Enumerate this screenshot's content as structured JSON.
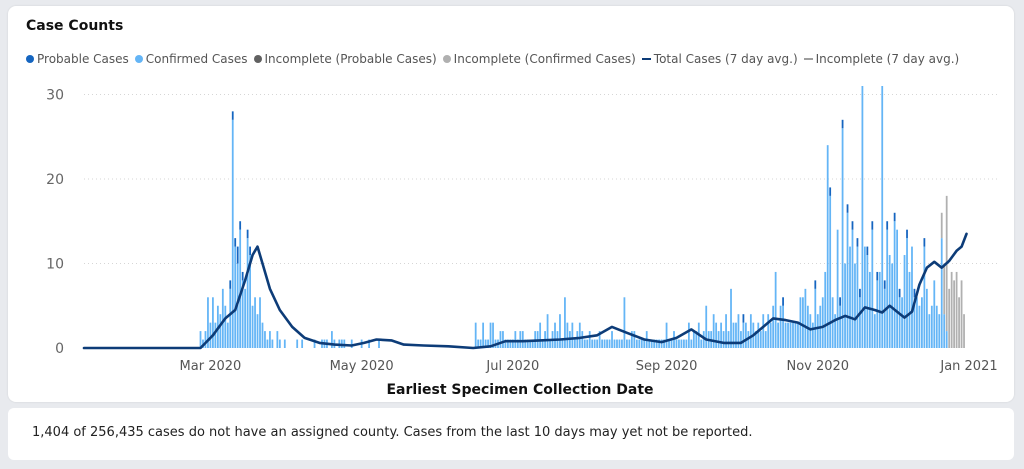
{
  "chart_data": {
    "type": "bar",
    "title": "Case Counts",
    "xlabel": "Earliest Specimen Collection Date",
    "ylabel": "",
    "ylim": [
      0,
      31
    ],
    "yticks": [
      0,
      10,
      20,
      30
    ],
    "grid": true,
    "legend_position": "top-left",
    "x_start": "2020-01-10",
    "x_end": "2020-12-31",
    "xticks": [
      {
        "date": "2020-03-01",
        "label": "Mar 2020"
      },
      {
        "date": "2020-05-01",
        "label": "May 2020"
      },
      {
        "date": "2020-07-01",
        "label": "Jul 2020"
      },
      {
        "date": "2020-09-01",
        "label": "Sep 2020"
      },
      {
        "date": "2020-11-01",
        "label": "Nov 2020"
      },
      {
        "date": "2021-01-01",
        "label": "Jan 2021"
      }
    ],
    "legend": [
      {
        "label": "Probable Cases",
        "kind": "dot",
        "color": "#1565c0"
      },
      {
        "label": "Confirmed Cases",
        "kind": "dot",
        "color": "#64b5f6"
      },
      {
        "label": "Incomplete (Probable Cases)",
        "kind": "dot",
        "color": "#616161"
      },
      {
        "label": "Incomplete (Confirmed Cases)",
        "kind": "dot",
        "color": "#b0b0b0"
      },
      {
        "label": "Total Cases (7 day avg.)",
        "kind": "line",
        "color": "#0d3c78"
      },
      {
        "label": "Incomplete (7 day avg.)",
        "kind": "line",
        "color": "#9e9e9e"
      }
    ],
    "series": [
      {
        "name": "Confirmed Cases",
        "color": "#64b5f6",
        "start": "2020-02-26",
        "values": [
          2,
          1,
          2,
          6,
          3,
          6,
          3,
          5,
          4,
          7,
          5,
          3,
          7,
          27,
          12,
          10,
          14,
          8,
          7,
          13,
          11,
          5,
          6,
          4,
          6,
          3,
          2,
          1,
          2,
          1,
          0,
          2,
          1,
          0,
          1,
          0,
          0,
          0,
          0,
          1,
          0,
          1,
          0,
          0,
          0,
          0,
          1,
          0,
          0,
          1,
          1,
          1,
          0,
          2,
          1,
          0,
          1,
          1,
          1,
          0,
          0,
          1,
          0,
          0,
          0,
          1,
          0,
          0,
          1,
          0,
          0,
          0,
          1,
          0,
          0,
          0,
          0,
          0,
          0,
          0,
          0,
          0,
          0,
          0,
          0,
          0,
          0,
          0,
          0,
          0,
          0,
          0,
          0,
          0,
          0,
          0,
          0,
          0,
          0,
          0,
          0,
          0,
          0,
          0,
          0,
          0,
          0,
          0,
          0,
          0,
          0,
          3,
          1,
          1,
          3,
          1,
          1,
          3,
          3,
          1,
          1,
          2,
          2,
          1,
          1,
          1,
          1,
          2,
          1,
          2,
          2,
          1,
          1,
          1,
          1,
          2,
          2,
          3,
          1,
          2,
          4,
          1,
          2,
          3,
          2,
          4,
          1,
          6,
          3,
          2,
          3,
          1,
          2,
          3,
          2,
          1,
          1,
          2,
          1,
          1,
          1,
          2,
          1,
          1,
          1,
          1,
          2,
          1,
          1,
          1,
          1,
          6,
          1,
          1,
          2,
          2,
          1,
          1,
          1,
          1,
          2,
          1,
          1,
          1,
          1,
          1,
          1,
          1,
          3,
          1,
          1,
          2,
          1,
          1,
          1,
          1,
          1,
          3,
          1,
          2,
          2,
          3,
          1,
          2,
          5,
          2,
          2,
          4,
          3,
          2,
          3,
          2,
          4,
          2,
          7,
          3,
          3,
          4,
          2,
          3,
          3,
          2,
          4,
          3,
          2,
          3,
          2,
          4,
          2,
          4,
          3,
          5,
          9,
          3,
          5,
          5,
          3,
          3,
          3,
          3,
          3,
          3,
          6,
          6,
          7,
          5,
          4,
          3,
          7,
          4,
          5,
          6,
          9,
          24,
          18,
          6,
          4,
          14,
          5,
          26,
          10,
          16,
          12,
          14,
          10,
          12,
          6,
          31,
          12,
          11,
          9,
          14,
          4,
          8,
          9,
          31,
          7,
          14,
          11,
          10,
          15,
          14,
          6,
          6,
          11,
          13,
          9,
          12,
          6,
          6,
          5,
          6,
          12,
          7,
          4,
          5,
          8,
          5,
          4,
          13,
          4,
          2
        ]
      },
      {
        "name": "Probable Cases",
        "color": "#1565c0",
        "start": "2020-02-26",
        "values": [
          0,
          0,
          0,
          0,
          0,
          0,
          0,
          0,
          0,
          0,
          0,
          0,
          1,
          1,
          1,
          2,
          1,
          1,
          0,
          1,
          1,
          0,
          0,
          0,
          0,
          0,
          0,
          0,
          0,
          0,
          0,
          0,
          0,
          0,
          0,
          0,
          0,
          0,
          0,
          0,
          0,
          0,
          0,
          0,
          0,
          0,
          0,
          0,
          0,
          0,
          0,
          0,
          0,
          0,
          0,
          0,
          0,
          0,
          0,
          0,
          0,
          0,
          0,
          0,
          0,
          0,
          0,
          0,
          0,
          0,
          0,
          0,
          0,
          0,
          0,
          0,
          0,
          0,
          0,
          0,
          0,
          0,
          0,
          0,
          0,
          0,
          0,
          0,
          0,
          0,
          0,
          0,
          0,
          0,
          0,
          0,
          0,
          0,
          0,
          0,
          0,
          0,
          0,
          0,
          0,
          0,
          0,
          0,
          0,
          0,
          0,
          0,
          0,
          0,
          0,
          0,
          0,
          0,
          0,
          0,
          0,
          0,
          0,
          0,
          0,
          0,
          0,
          0,
          0,
          0,
          0,
          0,
          0,
          0,
          0,
          0,
          0,
          0,
          0,
          0,
          0,
          0,
          0,
          0,
          0,
          0,
          0,
          0,
          0,
          0,
          0,
          0,
          0,
          0,
          0,
          0,
          0,
          0,
          0,
          0,
          0,
          0,
          0,
          0,
          0,
          0,
          0,
          0,
          0,
          0,
          0,
          0,
          0,
          0,
          0,
          0,
          0,
          0,
          0,
          0,
          0,
          0,
          0,
          0,
          0,
          0,
          0,
          0,
          0,
          0,
          0,
          0,
          0,
          0,
          0,
          0,
          0,
          0,
          0,
          0,
          0,
          0,
          0,
          0,
          0,
          0,
          0,
          0,
          0,
          0,
          0,
          0,
          0,
          0,
          0,
          0,
          0,
          0,
          0,
          1,
          0,
          0,
          0,
          0,
          0,
          0,
          0,
          0,
          0,
          0,
          0,
          0,
          0,
          0,
          0,
          1,
          0,
          0,
          0,
          0,
          0,
          0,
          0,
          0,
          0,
          0,
          0,
          0,
          1,
          0,
          0,
          0,
          0,
          0,
          1,
          0,
          0,
          0,
          1,
          1,
          0,
          1,
          0,
          1,
          0,
          1,
          1,
          0,
          0,
          1,
          0,
          1,
          0,
          1,
          0,
          0,
          1,
          1,
          0,
          0,
          1,
          0,
          1,
          0,
          0,
          1,
          0,
          0,
          1,
          0,
          0,
          0,
          1,
          0,
          0,
          0,
          0,
          0,
          0,
          0,
          0
        ]
      },
      {
        "name": "Incomplete (Confirmed Cases)",
        "color": "#b0b0b0",
        "start": "2020-12-21",
        "values": [
          3,
          6,
          16,
          7,
          9,
          8,
          9,
          6,
          8,
          4
        ]
      },
      {
        "name": "Incomplete (Probable Cases)",
        "color": "#616161",
        "start": "2020-12-21",
        "values": [
          0,
          0,
          0,
          0,
          0,
          0,
          0,
          0,
          0,
          0
        ]
      },
      {
        "name": "Total Cases (7 day avg.)",
        "type": "line",
        "color": "#0d3c78",
        "points": [
          {
            "x": "2020-01-10",
            "y": 0
          },
          {
            "x": "2020-02-26",
            "y": 0
          },
          {
            "x": "2020-03-02",
            "y": 1.5
          },
          {
            "x": "2020-03-07",
            "y": 3.5
          },
          {
            "x": "2020-03-11",
            "y": 4.5
          },
          {
            "x": "2020-03-15",
            "y": 8
          },
          {
            "x": "2020-03-18",
            "y": 11
          },
          {
            "x": "2020-03-20",
            "y": 12
          },
          {
            "x": "2020-03-22",
            "y": 10
          },
          {
            "x": "2020-03-25",
            "y": 7
          },
          {
            "x": "2020-03-29",
            "y": 4.5
          },
          {
            "x": "2020-04-03",
            "y": 2.5
          },
          {
            "x": "2020-04-08",
            "y": 1.2
          },
          {
            "x": "2020-04-14",
            "y": 0.6
          },
          {
            "x": "2020-04-20",
            "y": 0.4
          },
          {
            "x": "2020-04-27",
            "y": 0.3
          },
          {
            "x": "2020-05-02",
            "y": 0.6
          },
          {
            "x": "2020-05-07",
            "y": 1.0
          },
          {
            "x": "2020-05-13",
            "y": 0.9
          },
          {
            "x": "2020-05-18",
            "y": 0.4
          },
          {
            "x": "2020-05-26",
            "y": 0.3
          },
          {
            "x": "2020-06-05",
            "y": 0.2
          },
          {
            "x": "2020-06-15",
            "y": 0
          },
          {
            "x": "2020-06-22",
            "y": 0.2
          },
          {
            "x": "2020-06-28",
            "y": 0.8
          },
          {
            "x": "2020-07-05",
            "y": 0.8
          },
          {
            "x": "2020-07-12",
            "y": 0.9
          },
          {
            "x": "2020-07-20",
            "y": 1.0
          },
          {
            "x": "2020-07-28",
            "y": 1.2
          },
          {
            "x": "2020-08-04",
            "y": 1.5
          },
          {
            "x": "2020-08-10",
            "y": 2.5
          },
          {
            "x": "2020-08-16",
            "y": 1.8
          },
          {
            "x": "2020-08-23",
            "y": 1.0
          },
          {
            "x": "2020-08-30",
            "y": 0.7
          },
          {
            "x": "2020-09-05",
            "y": 1.2
          },
          {
            "x": "2020-09-11",
            "y": 2.2
          },
          {
            "x": "2020-09-17",
            "y": 1.0
          },
          {
            "x": "2020-09-24",
            "y": 0.6
          },
          {
            "x": "2020-10-01",
            "y": 0.6
          },
          {
            "x": "2020-10-06",
            "y": 1.5
          },
          {
            "x": "2020-10-10",
            "y": 2.5
          },
          {
            "x": "2020-10-14",
            "y": 3.5
          },
          {
            "x": "2020-10-19",
            "y": 3.3
          },
          {
            "x": "2020-10-24",
            "y": 3.0
          },
          {
            "x": "2020-10-29",
            "y": 2.2
          },
          {
            "x": "2020-11-03",
            "y": 2.5
          },
          {
            "x": "2020-11-08",
            "y": 3.3
          },
          {
            "x": "2020-11-12",
            "y": 3.8
          },
          {
            "x": "2020-11-16",
            "y": 3.4
          },
          {
            "x": "2020-11-20",
            "y": 4.8
          },
          {
            "x": "2020-11-24",
            "y": 4.5
          },
          {
            "x": "2020-11-27",
            "y": 4.2
          },
          {
            "x": "2020-11-30",
            "y": 5.0
          },
          {
            "x": "2020-12-03",
            "y": 4.3
          },
          {
            "x": "2020-12-06",
            "y": 3.6
          },
          {
            "x": "2020-12-09",
            "y": 4.3
          },
          {
            "x": "2020-12-12",
            "y": 7.5
          },
          {
            "x": "2020-12-15",
            "y": 9.5
          },
          {
            "x": "2020-12-18",
            "y": 10.2
          },
          {
            "x": "2020-12-21",
            "y": 9.5
          },
          {
            "x": "2020-12-24",
            "y": 10.3
          },
          {
            "x": "2020-12-27",
            "y": 11.5
          },
          {
            "x": "2020-12-29",
            "y": 12.0
          },
          {
            "x": "2020-12-31",
            "y": 13.5
          }
        ]
      },
      {
        "name": "Incomplete (7 day avg.)",
        "type": "line",
        "color": "#9e9e9e",
        "points": []
      }
    ]
  },
  "footer": {
    "note": "1,404 of 256,435 cases do not have an assigned county. Cases from the last 10 days may yet not be reported."
  }
}
